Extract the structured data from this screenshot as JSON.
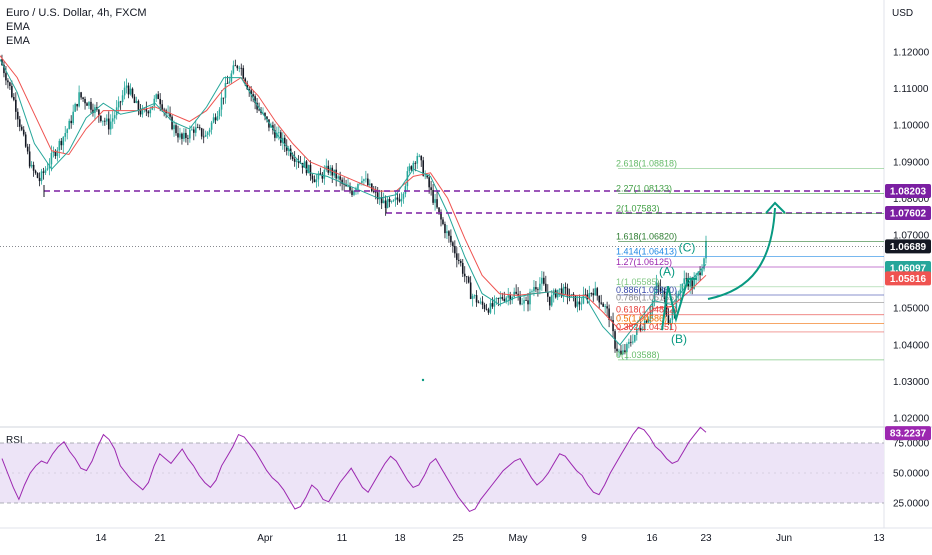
{
  "header": {
    "symbol_title": "Euro / U.S. Dollar, 4h, FXCM",
    "indicators": [
      "EMA",
      "EMA"
    ]
  },
  "colors": {
    "up": "#26a69a",
    "down": "#131722",
    "ema_fast": "#26a69a",
    "ema_slow": "#ef5350",
    "support_line": "#7b1fa2",
    "rsi_line": "#9c27b0",
    "rsi_band": "#ede4f7",
    "arrow": "#089981"
  },
  "chart_data": [
    {
      "type": "candlestick",
      "title": "Euro / U.S. Dollar, 4h, FXCM",
      "currency_label": "USD",
      "x_tick_labels": [
        "14",
        "21",
        "Apr",
        "11",
        "18",
        "25",
        "May",
        "9",
        "16",
        "23",
        "Jun",
        "13"
      ],
      "y_tick_labels": [
        "1.12000",
        "1.11000",
        "1.10000",
        "1.09000",
        "1.08000",
        "1.07000",
        "1.06000",
        "1.05000",
        "1.04000",
        "1.03000",
        "1.02000"
      ],
      "ylim": [
        1.0195,
        1.1265
      ],
      "price_path": [
        [
          0,
          1.118
        ],
        [
          4,
          1.112
        ],
        [
          8,
          1.105
        ],
        [
          12,
          1.096
        ],
        [
          16,
          1.088
        ],
        [
          20,
          1.085
        ],
        [
          25,
          1.09
        ],
        [
          30,
          1.095
        ],
        [
          35,
          1.1
        ],
        [
          40,
          1.108
        ],
        [
          45,
          1.106
        ],
        [
          50,
          1.103
        ],
        [
          55,
          1.1
        ],
        [
          60,
          1.105
        ],
        [
          64,
          1.111
        ],
        [
          68,
          1.106
        ],
        [
          72,
          1.103
        ],
        [
          76,
          1.105
        ],
        [
          80,
          1.108
        ],
        [
          86,
          1.101
        ],
        [
          92,
          1.096
        ],
        [
          98,
          1.099
        ],
        [
          104,
          1.097
        ],
        [
          110,
          1.104
        ],
        [
          114,
          1.11
        ],
        [
          118,
          1.115
        ],
        [
          121,
          1.117
        ],
        [
          125,
          1.111
        ],
        [
          130,
          1.105
        ],
        [
          136,
          1.1
        ],
        [
          142,
          1.096
        ],
        [
          148,
          1.092
        ],
        [
          154,
          1.089
        ],
        [
          160,
          1.085
        ],
        [
          166,
          1.088
        ],
        [
          170,
          1.086
        ],
        [
          174,
          1.083
        ],
        [
          178,
          1.082
        ],
        [
          183,
          1.086
        ],
        [
          188,
          1.082
        ],
        [
          193,
          1.079
        ],
        [
          198,
          1.078
        ],
        [
          203,
          1.081
        ],
        [
          207,
          1.088
        ],
        [
          211,
          1.092
        ],
        [
          215,
          1.086
        ],
        [
          219,
          1.08
        ],
        [
          223,
          1.074
        ],
        [
          228,
          1.068
        ],
        [
          233,
          1.062
        ],
        [
          238,
          1.054
        ],
        [
          243,
          1.051
        ],
        [
          248,
          1.05
        ],
        [
          254,
          1.053
        ],
        [
          260,
          1.054
        ],
        [
          266,
          1.051
        ],
        [
          270,
          1.056
        ],
        [
          274,
          1.057
        ],
        [
          278,
          1.052
        ],
        [
          282,
          1.055
        ],
        [
          287,
          1.054
        ],
        [
          292,
          1.051
        ],
        [
          296,
          1.053
        ],
        [
          300,
          1.055
        ],
        [
          304,
          1.052
        ],
        [
          308,
          1.048
        ],
        [
          311,
          1.04
        ],
        [
          314,
          1.037
        ],
        [
          317,
          1.039
        ],
        [
          320,
          1.042
        ],
        [
          324,
          1.045
        ],
        [
          328,
          1.048
        ],
        [
          332,
          1.056
        ],
        [
          335,
          1.054
        ],
        [
          338,
          1.047
        ],
        [
          341,
          1.05
        ],
        [
          344,
          1.056
        ],
        [
          347,
          1.058
        ],
        [
          350,
          1.056
        ],
        [
          353,
          1.059
        ],
        [
          355,
          1.062
        ],
        [
          357,
          1.0669
        ]
      ],
      "ema_fast_values": [
        1.118,
        1.109,
        1.095,
        1.088,
        1.093,
        1.102,
        1.106,
        1.103,
        1.104,
        1.106,
        1.101,
        1.099,
        1.105,
        1.113,
        1.113,
        1.105,
        1.098,
        1.092,
        1.087,
        1.086,
        1.084,
        1.082,
        1.08,
        1.081,
        1.088,
        1.086,
        1.076,
        1.064,
        1.054,
        1.051,
        1.053,
        1.054,
        1.0545,
        1.053,
        1.053,
        1.045,
        1.04,
        1.046,
        1.052,
        1.051,
        1.057,
        1.062
      ],
      "ema_slow_values": [
        1.119,
        1.113,
        1.103,
        1.093,
        1.092,
        1.099,
        1.104,
        1.104,
        1.104,
        1.105,
        1.103,
        1.101,
        1.104,
        1.11,
        1.113,
        1.108,
        1.101,
        1.095,
        1.09,
        1.088,
        1.086,
        1.084,
        1.082,
        1.082,
        1.086,
        1.087,
        1.08,
        1.069,
        1.059,
        1.054,
        1.0535,
        1.054,
        1.0545,
        1.0535,
        1.0535,
        1.049,
        1.044,
        1.046,
        1.05,
        1.0505,
        1.0545,
        1.059
      ],
      "support_levels": [
        1.08203,
        1.07602
      ],
      "fib_levels": [
        {
          "label": "2.618(1.08818)",
          "value": 1.08818,
          "color": "#66bb6a"
        },
        {
          "label": "2.27(1.08133)",
          "value": 1.08133,
          "color": "#43a047"
        },
        {
          "label": "2(1.07583)",
          "value": 1.07583,
          "color": "#43a047"
        },
        {
          "label": "1.618(1.06820)",
          "value": 1.0682,
          "color": "#2e7d32"
        },
        {
          "label": "1.414(1.06413)",
          "value": 1.06413,
          "color": "#1e88e5"
        },
        {
          "label": "1.27(1.06125)",
          "value": 1.06125,
          "color": "#9c27b0"
        },
        {
          "label": "1(1.05585)",
          "value": 1.05585,
          "color": "#81c784"
        },
        {
          "label": "0.886(1.05360)",
          "value": 1.0536,
          "color": "#3949ab"
        },
        {
          "label": "0.786(1.05155)",
          "value": 1.05155,
          "color": "#8d8d8d"
        },
        {
          "label": "0.618(1.04822)",
          "value": 1.04822,
          "color": "#e53935"
        },
        {
          "label": "0.5(1.04586)",
          "value": 1.04586,
          "color": "#ef6c00"
        },
        {
          "label": "0.382(1.04351)",
          "value": 1.04351,
          "color": "#e53935"
        },
        {
          "label": "0(1.03588)",
          "value": 1.03588,
          "color": "#66bb6a"
        }
      ],
      "wave_labels": [
        "(A)",
        "(B)",
        "(C)"
      ],
      "price_tags": [
        {
          "text": "1.08203",
          "value": 1.08203,
          "bg": "#7b1fa2",
          "fg": "#ffffff"
        },
        {
          "text": "1.07602",
          "value": 1.07602,
          "bg": "#7b1fa2",
          "fg": "#ffffff"
        },
        {
          "text": "1.06689",
          "value": 1.06689,
          "bg": "#131722",
          "fg": "#ffffff"
        },
        {
          "text": "1.06097",
          "value": 1.06097,
          "bg": "#26a69a",
          "fg": "#ffffff"
        },
        {
          "text": "1.05816",
          "value": 1.05816,
          "bg": "#ef5350",
          "fg": "#ffffff"
        }
      ]
    },
    {
      "type": "line",
      "title": "RSI",
      "y_tick_labels": [
        "75.0000",
        "50.0000",
        "25.0000"
      ],
      "ylim": [
        10,
        100
      ],
      "band": [
        30,
        70
      ],
      "current_tag": "83.2237",
      "current_value": 83.2237,
      "values": [
        62,
        50,
        38,
        28,
        40,
        50,
        56,
        60,
        58,
        66,
        72,
        76,
        68,
        62,
        54,
        52,
        60,
        72,
        82,
        78,
        70,
        56,
        50,
        44,
        40,
        36,
        42,
        56,
        66,
        62,
        58,
        64,
        70,
        62,
        56,
        48,
        42,
        38,
        44,
        56,
        64,
        72,
        82,
        80,
        74,
        68,
        60,
        52,
        46,
        42,
        36,
        28,
        20,
        22,
        30,
        40,
        36,
        28,
        26,
        34,
        42,
        48,
        54,
        46,
        38,
        34,
        42,
        50,
        58,
        64,
        60,
        52,
        44,
        38,
        40,
        48,
        58,
        62,
        54,
        46,
        38,
        30,
        24,
        18,
        20,
        28,
        34,
        40,
        46,
        52,
        56,
        60,
        62,
        54,
        46,
        40,
        44,
        50,
        58,
        66,
        64,
        58,
        52,
        48,
        40,
        34,
        32,
        40,
        50,
        58,
        66,
        74,
        82,
        88,
        86,
        80,
        72,
        68,
        62,
        58,
        60,
        68,
        76,
        82,
        88,
        84
      ]
    }
  ]
}
